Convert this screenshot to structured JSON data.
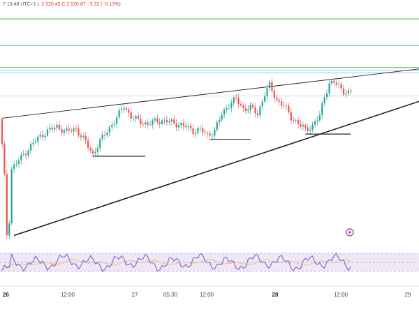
{
  "header": {
    "time_label": "13:48 UTC+1",
    "ohlc_text": "L 2,520.45  C 2,520.87  −3.32 (−0.13%)",
    "truncated_prefix": "7"
  },
  "colors": {
    "up": "#26a69a",
    "down": "#ef5350",
    "green_level": "#4caf50",
    "blue_level": "#90caf9",
    "trendline": "#222222",
    "rsi_line": "#7e57c2",
    "rsi_ma": "#f5c46a",
    "rsi_band": "#ede7f6"
  },
  "chart_data": {
    "type": "candlestick",
    "x_tick_labels": [
      {
        "label": "26",
        "bold": true
      },
      {
        "label": "12:00",
        "bold": false
      },
      {
        "label": "27",
        "bold": false
      },
      {
        "label": "05:30",
        "bold": false
      },
      {
        "label": "12:00",
        "bold": false
      },
      {
        "label": "28",
        "bold": true
      },
      {
        "label": "12:00",
        "bold": false
      },
      {
        "label": "29",
        "bold": false
      }
    ],
    "rsi_levels": [
      70,
      50,
      30
    ],
    "ylim": [
      2380,
      2600
    ],
    "horizontal_levels": [
      {
        "kind": "green",
        "value": 2590
      },
      {
        "kind": "green",
        "value": 2565
      },
      {
        "kind": "green",
        "value": 2544
      },
      {
        "kind": "blue",
        "value": 2541
      },
      {
        "kind": "blue",
        "value": 2539
      }
    ],
    "close_marker_level": 2517,
    "trendlines": [
      {
        "name": "upper",
        "x1": 0,
        "y1": 2496,
        "x2": 176,
        "y2": 2543
      },
      {
        "name": "lower",
        "x1": 5,
        "y1": 2385,
        "x2": 176,
        "y2": 2513
      }
    ],
    "support_segments": [
      {
        "x1": 38,
        "x2": 60,
        "y": 2460
      },
      {
        "x1": 87,
        "x2": 104,
        "y": 2476
      },
      {
        "x1": 127,
        "x2": 146,
        "y": 2481
      }
    ],
    "candle_count": 147,
    "rsi_count": 147
  }
}
